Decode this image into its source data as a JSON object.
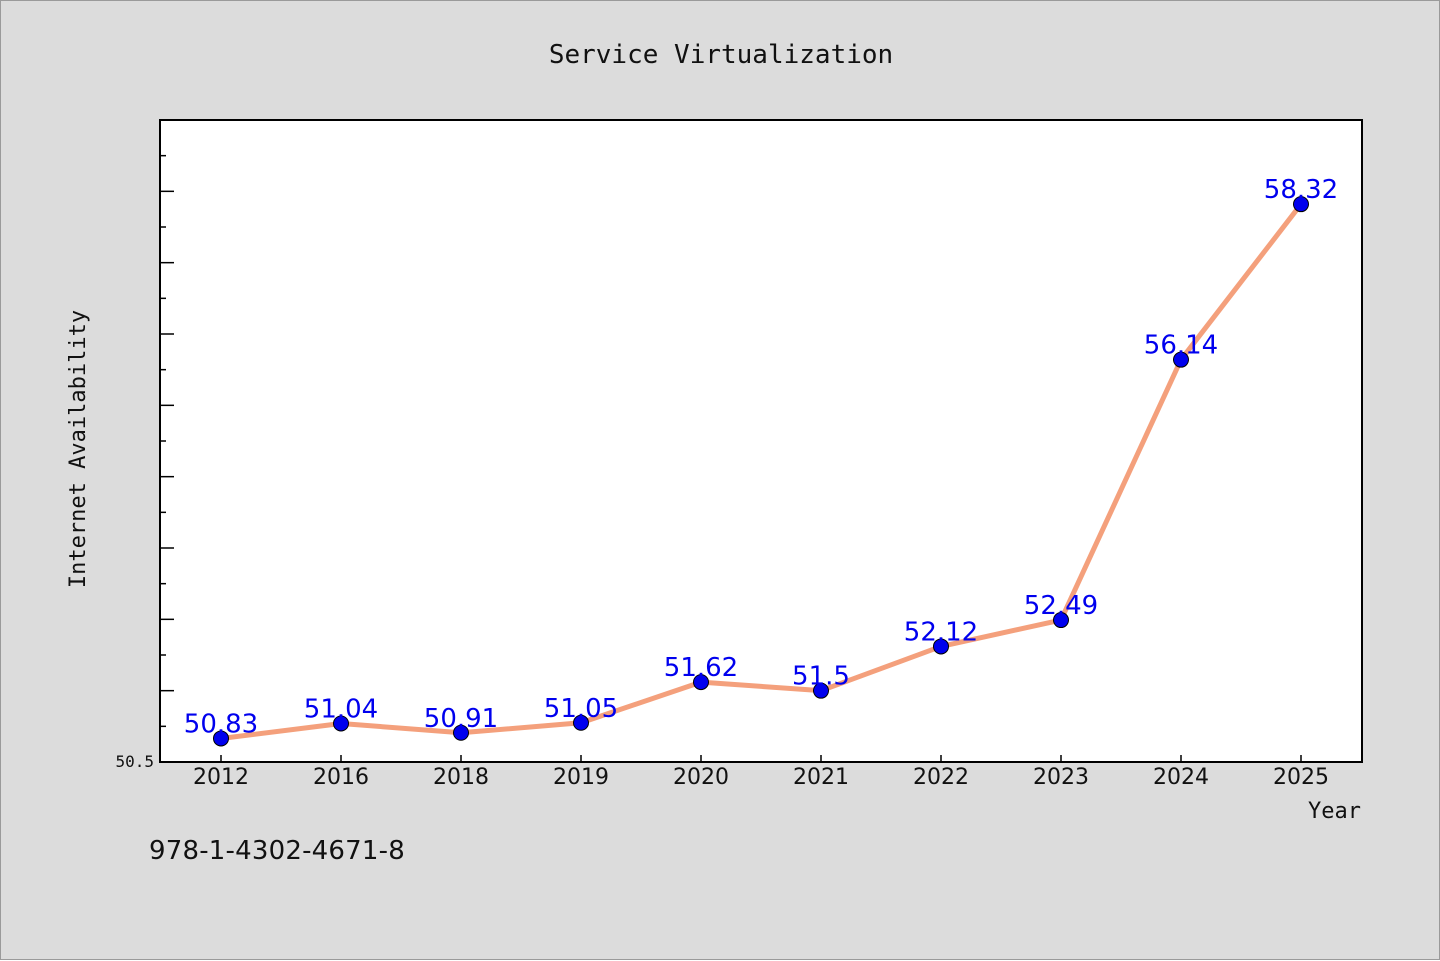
{
  "chart_data": {
    "type": "line",
    "title": "Service Virtualization",
    "xlabel": "Year",
    "ylabel": "Internet Availability",
    "categories": [
      "2012",
      "2016",
      "2018",
      "2019",
      "2020",
      "2021",
      "2022",
      "2023",
      "2024",
      "2025"
    ],
    "series": [
      {
        "values": [
          50.83,
          51.04,
          50.91,
          51.05,
          51.62,
          51.5,
          52.12,
          52.49,
          56.14,
          58.32
        ]
      }
    ],
    "data_labels": [
      "50.83",
      "51.04",
      "50.91",
      "51.05",
      "51.62",
      "51.5",
      "52.12",
      "52.49",
      "56.14",
      "58.32"
    ],
    "ylim": [
      50.5,
      59.5
    ],
    "y_tick_labels": [
      "50.5"
    ],
    "grid": false,
    "line_color": "#f4a07c",
    "marker_color": "#0000ee",
    "label_color": "#0000ee"
  },
  "footer_text": "978-1-4302-4671-8"
}
